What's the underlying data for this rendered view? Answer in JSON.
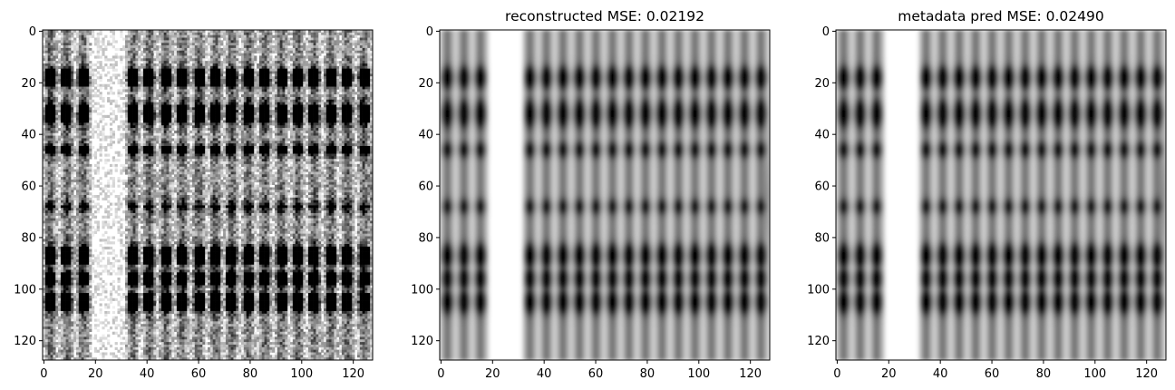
{
  "chart_data": [
    {
      "type": "heatmap",
      "title": "",
      "colormap": "gray_r",
      "xlim": [
        0,
        127
      ],
      "ylim": [
        127,
        0
      ],
      "x_ticks": [
        0,
        20,
        40,
        60,
        80,
        100,
        120
      ],
      "y_ticks": [
        0,
        20,
        40,
        60,
        80,
        100,
        120
      ],
      "x_tick_labels": [
        "0",
        "20",
        "40",
        "60",
        "80",
        "100",
        "120"
      ],
      "y_tick_labels": [
        "0",
        "20",
        "40",
        "60",
        "80",
        "100",
        "120"
      ],
      "grid": false,
      "style": "noisy",
      "blank_band_cols": [
        19,
        31
      ],
      "stripe_period_cols": 6.4,
      "dark_rows": [
        18,
        32,
        46,
        68,
        87,
        96,
        105
      ]
    },
    {
      "type": "heatmap",
      "title": "reconstructed MSE: 0.02192",
      "colormap": "gray_r",
      "xlim": [
        0,
        127
      ],
      "ylim": [
        127,
        0
      ],
      "x_ticks": [
        0,
        20,
        40,
        60,
        80,
        100,
        120
      ],
      "y_ticks": [
        0,
        20,
        40,
        60,
        80,
        100,
        120
      ],
      "x_tick_labels": [
        "0",
        "20",
        "40",
        "60",
        "80",
        "100",
        "120"
      ],
      "y_tick_labels": [
        "0",
        "20",
        "40",
        "60",
        "80",
        "100",
        "120"
      ],
      "grid": false,
      "style": "smooth",
      "blank_band_cols": [
        19,
        31
      ],
      "stripe_period_cols": 6.4,
      "dark_rows": [
        18,
        32,
        46,
        68,
        87,
        96,
        105
      ]
    },
    {
      "type": "heatmap",
      "title": "metadata pred MSE: 0.02490",
      "colormap": "gray_r",
      "xlim": [
        0,
        127
      ],
      "ylim": [
        127,
        0
      ],
      "x_ticks": [
        0,
        20,
        40,
        60,
        80,
        100,
        120
      ],
      "y_ticks": [
        0,
        20,
        40,
        60,
        80,
        100,
        120
      ],
      "x_tick_labels": [
        "0",
        "20",
        "40",
        "60",
        "80",
        "100",
        "120"
      ],
      "y_tick_labels": [
        "0",
        "20",
        "40",
        "60",
        "80",
        "100",
        "120"
      ],
      "grid": false,
      "style": "smooth",
      "blank_band_cols": [
        19,
        31
      ],
      "stripe_period_cols": 6.4,
      "dark_rows": [
        18,
        32,
        46,
        68,
        87,
        96,
        105
      ]
    }
  ]
}
